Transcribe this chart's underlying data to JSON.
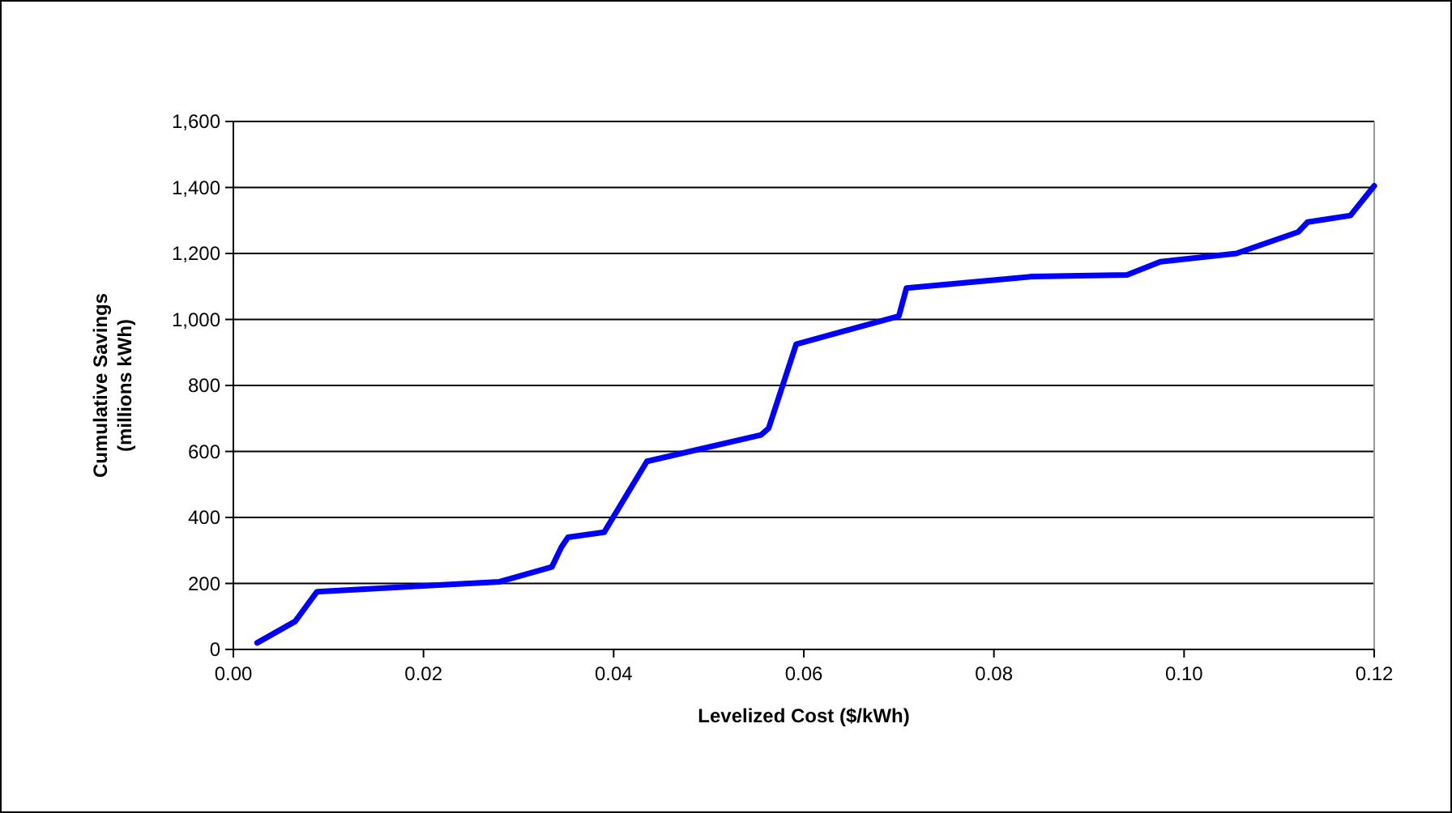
{
  "chart_data": {
    "type": "line",
    "xlabel": "Levelized Cost ($/kWh)",
    "ylabel": "Cumulative Savings\n(millions kWh)",
    "x": [
      0.0025,
      0.0065,
      0.0088,
      0.028,
      0.0335,
      0.0345,
      0.0352,
      0.039,
      0.0435,
      0.0555,
      0.0563,
      0.0592,
      0.07,
      0.0708,
      0.084,
      0.094,
      0.0975,
      0.1055,
      0.112,
      0.113,
      0.1175,
      0.12
    ],
    "series": [
      {
        "color": "#0000ff",
        "values": [
          20,
          85,
          175,
          205,
          250,
          310,
          340,
          355,
          570,
          650,
          670,
          925,
          1010,
          1095,
          1130,
          1135,
          1175,
          1200,
          1265,
          1295,
          1315,
          1405
        ]
      }
    ],
    "xlim": [
      0,
      0.12
    ],
    "xticks": [
      {
        "value": 0,
        "label": "0.00"
      },
      {
        "value": 0.02,
        "label": "0.02"
      },
      {
        "value": 0.04,
        "label": "0.04"
      },
      {
        "value": 0.06,
        "label": "0.06"
      },
      {
        "value": 0.08,
        "label": "0.08"
      },
      {
        "value": 0.1,
        "label": "0.10"
      },
      {
        "value": 0.12,
        "label": "0.12"
      }
    ],
    "ylim": [
      0,
      1600
    ],
    "yticks": [
      0,
      200,
      400,
      600,
      800,
      {
        "value": 1000,
        "label": "1,000"
      },
      {
        "value": 1200,
        "label": "1,200"
      },
      {
        "value": 1400,
        "label": "1,400"
      },
      {
        "value": 1600,
        "label": "1,600"
      }
    ],
    "grid": "y",
    "marker": "none",
    "line_style": "solid"
  }
}
